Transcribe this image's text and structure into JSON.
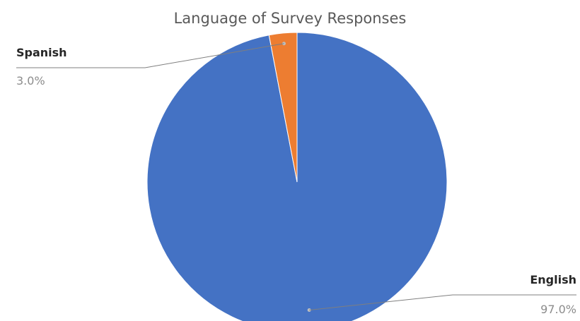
{
  "chart_data": {
    "type": "pie",
    "title": "Language of Survey Responses",
    "categories": [
      "English",
      "Spanish"
    ],
    "values": [
      97.0,
      3.0
    ],
    "value_labels": [
      "97.0%",
      "3.0%"
    ],
    "colors": [
      "#4472C4",
      "#ED7D31"
    ],
    "legend": "none",
    "data_labels": "outside with leader lines"
  }
}
